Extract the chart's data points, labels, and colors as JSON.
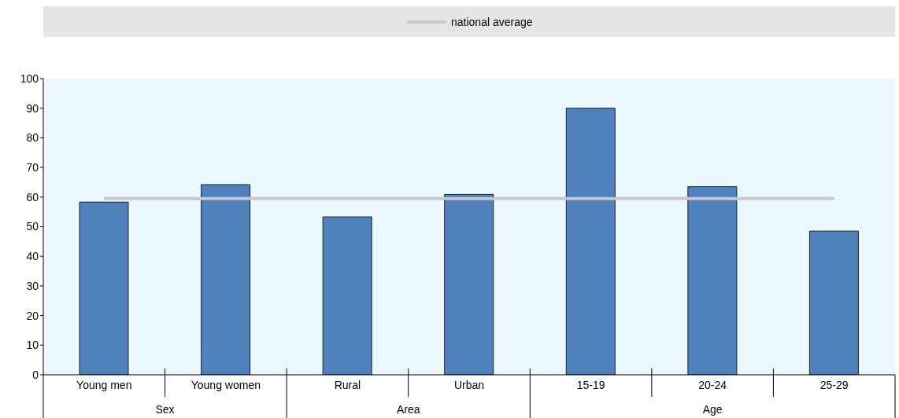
{
  "chart_data": {
    "type": "bar",
    "categories": [
      "Young men",
      "Young women",
      "Rural",
      "Urban",
      "15-19",
      "20-24",
      "25-29"
    ],
    "values": [
      58.3,
      64.2,
      53.3,
      60.9,
      90,
      63.5,
      48.5
    ],
    "color": "#4f81bd",
    "ylim": [
      0,
      100
    ],
    "yticks": [
      0,
      10,
      20,
      30,
      40,
      50,
      60,
      70,
      80,
      90,
      100
    ],
    "grid": false,
    "legend": "top",
    "ref_lines": [
      {
        "axis": "y",
        "value": 59.5,
        "label": "national average",
        "color": "#c8c8c8"
      }
    ],
    "annotations": [
      "Sex",
      "Area",
      "Age"
    ]
  }
}
